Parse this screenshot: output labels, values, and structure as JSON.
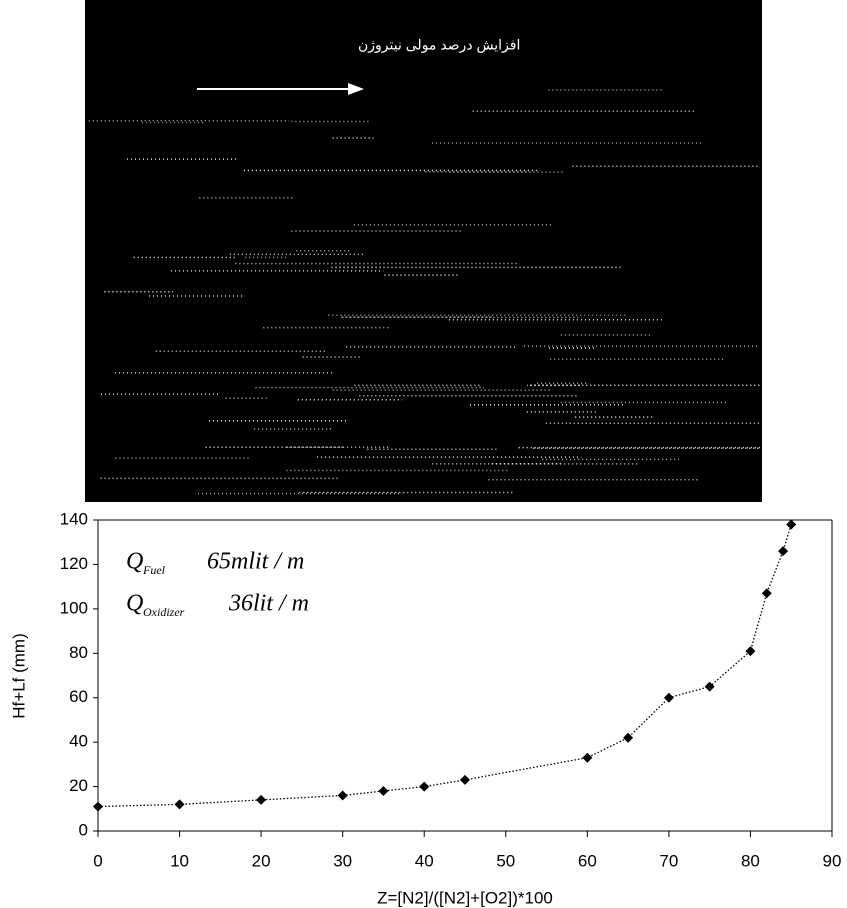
{
  "chart_data": {
    "type": "line",
    "photo_caption": "افزایش درصد مولی نیتروژن",
    "x_label": "Z=[N2]/([N2]+[O2])*100",
    "y_label": "Hf+Lf (mm)",
    "annotations": [
      {
        "symbol": "Q",
        "subscript": "Fuel",
        "text": "65mlit / m"
      },
      {
        "symbol": "Q",
        "subscript": "Oxidizer",
        "text": "36lit / m"
      }
    ],
    "x": [
      0,
      10,
      20,
      30,
      35,
      40,
      45,
      60,
      65,
      70,
      75,
      80,
      82,
      84,
      85
    ],
    "series": [
      {
        "color": "#000000",
        "values": [
          11,
          12,
          14,
          16,
          18,
          20,
          23,
          33,
          42,
          60,
          65,
          81,
          107,
          126,
          138
        ]
      }
    ],
    "xlim": [
      0,
      90
    ],
    "xticks": [
      0,
      10,
      20,
      30,
      40,
      50,
      60,
      70,
      80,
      90
    ],
    "ylim": [
      0,
      140
    ],
    "yticks": [
      0,
      20,
      40,
      60,
      80,
      100,
      120,
      140
    ]
  }
}
